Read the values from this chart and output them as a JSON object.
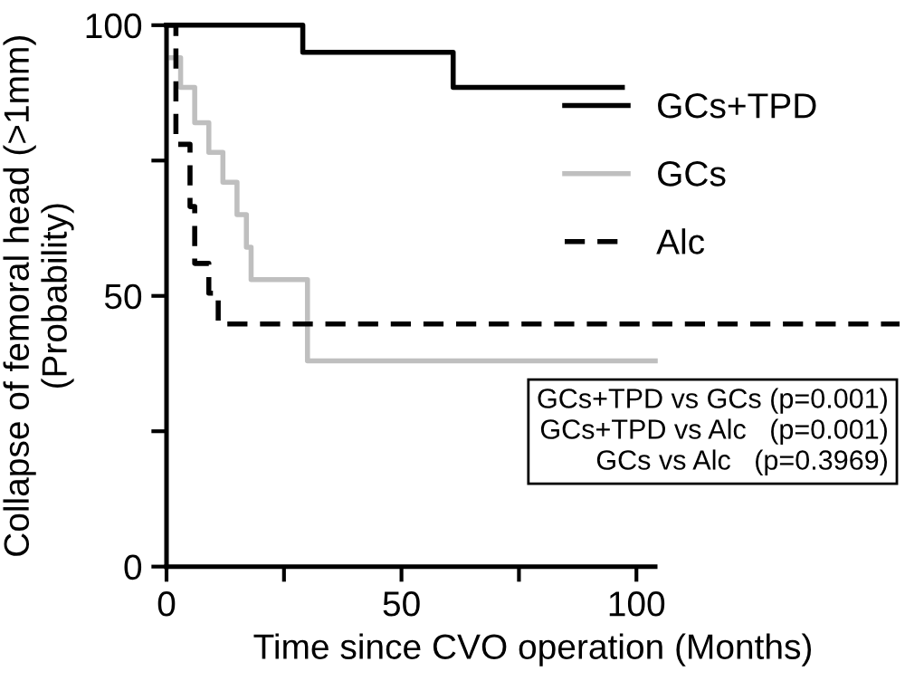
{
  "chart_data": {
    "type": "step",
    "xlabel": "Time since CVO operation (Months)",
    "ylabel": "Collapse of femoral head (>1mm)\n(Probability)",
    "xlim": [
      0,
      156
    ],
    "ylim": [
      0,
      100
    ],
    "xticks": [
      0,
      {
        "value": 25,
        "label": null
      },
      50,
      {
        "value": 75,
        "label": null
      },
      100
    ],
    "yticks": [
      0,
      {
        "value": 25,
        "label": null
      },
      50,
      {
        "value": 75,
        "label": null
      },
      100
    ],
    "legend": "right",
    "grid": false,
    "marker": "none",
    "series": [
      {
        "name": "GCs+TPD",
        "color": "#000000",
        "line_style": "solid",
        "x": [
          0,
          29,
          61,
          97
        ],
        "values": [
          100,
          95,
          88.5,
          88.5
        ]
      },
      {
        "name": "GCs",
        "color": "#bfbfbf",
        "line_style": "solid",
        "x": [
          1,
          3,
          6,
          9,
          12,
          15,
          17,
          18,
          30,
          104
        ],
        "values": [
          94,
          88.5,
          82,
          76.5,
          71,
          65,
          59,
          53,
          38,
          38
        ]
      },
      {
        "name": "Alc",
        "color": "#000000",
        "line_style": "dashed",
        "x": [
          0,
          2,
          5,
          6,
          9,
          11,
          156
        ],
        "values": [
          100,
          78,
          66.5,
          56,
          50.5,
          44.8,
          44.8
        ]
      }
    ],
    "annotations": [
      "GCs+TPD vs GCs (p=0.001)",
      "GCs+TPD vs Alc   (p=0.001)",
      "GCs vs Alc   (p=0.3969)"
    ]
  }
}
